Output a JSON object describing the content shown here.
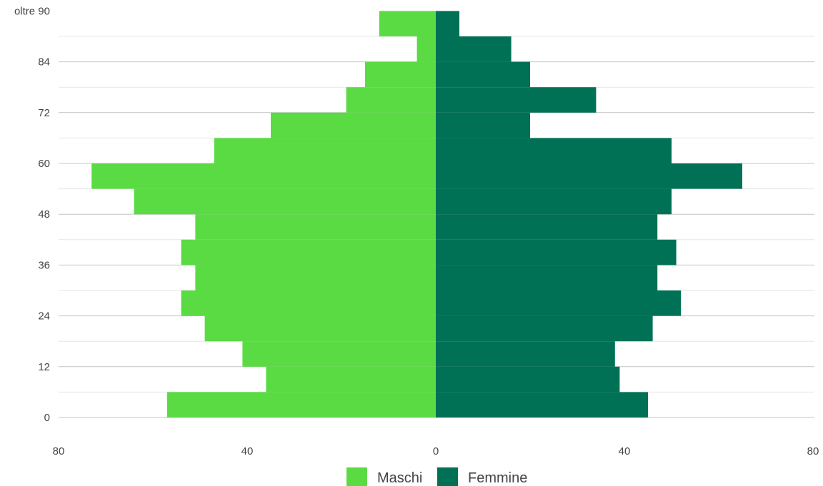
{
  "chart_data": {
    "type": "bar",
    "orientation": "horizontal",
    "layout": "population-pyramid",
    "categories": [
      "0",
      "6",
      "12",
      "18",
      "24",
      "30",
      "36",
      "42",
      "48",
      "54",
      "60",
      "66",
      "72",
      "78",
      "84",
      "90"
    ],
    "y_tick_labels": [
      "0",
      "12",
      "24",
      "36",
      "48",
      "60",
      "72",
      "84",
      "oltre 90"
    ],
    "x_tick_labels": [
      "80",
      "40",
      "0",
      "40",
      "80"
    ],
    "xlim": [
      -80,
      80
    ],
    "series": [
      {
        "name": "Maschi",
        "color": "#5ADB44",
        "side": "left",
        "values": [
          57,
          36,
          41,
          49,
          54,
          51,
          54,
          51,
          64,
          73,
          47,
          35,
          19,
          15,
          4,
          12
        ]
      },
      {
        "name": "Femmine",
        "color": "#007155",
        "side": "right",
        "values": [
          45,
          39,
          38,
          46,
          52,
          47,
          51,
          47,
          50,
          65,
          50,
          20,
          34,
          20,
          16,
          5
        ]
      }
    ],
    "grid": true,
    "legend_position": "bottom"
  }
}
